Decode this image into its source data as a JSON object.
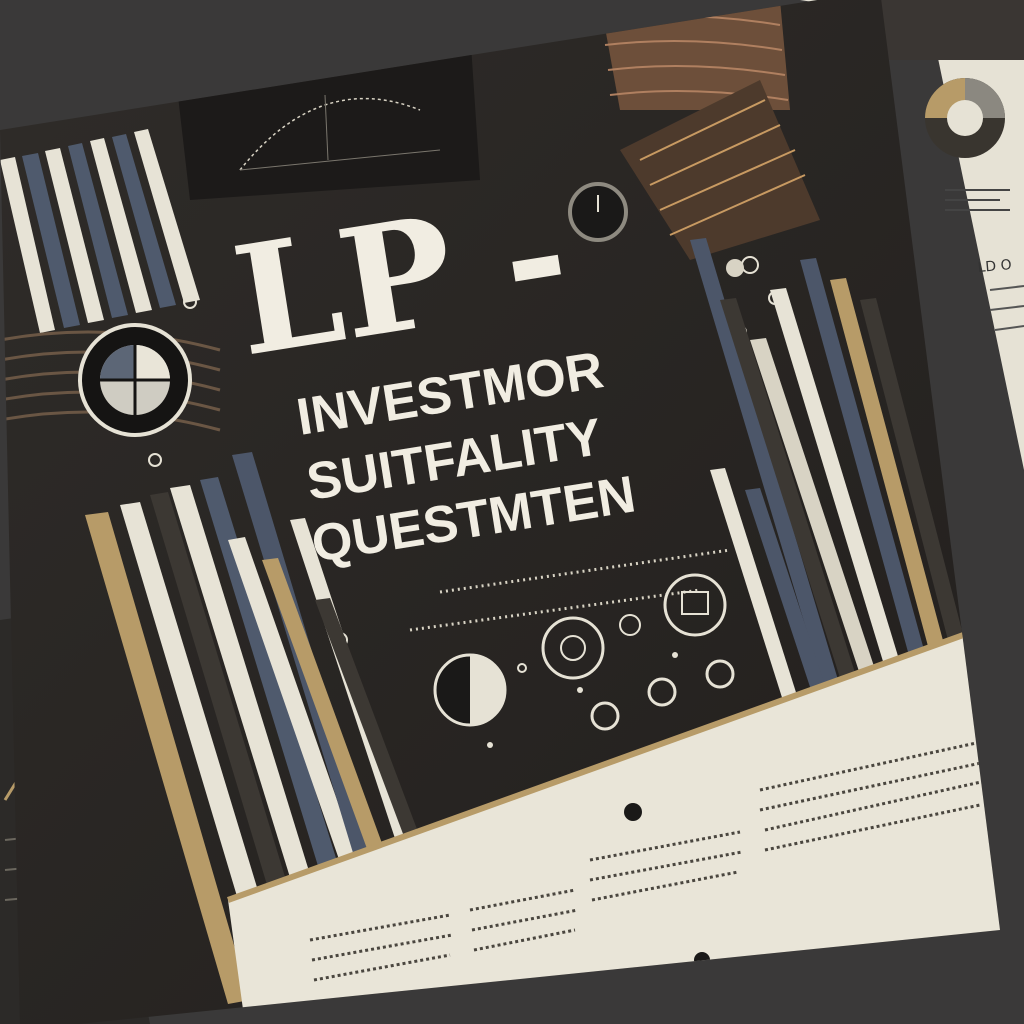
{
  "cover": {
    "title_line1": "LP -",
    "title_line2": "INVESTMOR",
    "title_line3": "SUITFALITY",
    "title_line4": "QUESTMTEN"
  },
  "side_doc": {
    "heading_fragment": "LD O"
  },
  "colors": {
    "background": "#3a3939",
    "cover": "#2b2826",
    "cream": "#e9e5d8",
    "gold": "#b79b68",
    "slate": "#4c5669",
    "text_light": "#f1ede2"
  },
  "icons": [
    "pie-chart-icon",
    "gauge-icon",
    "donut-chart-icon",
    "line-chart-icon",
    "ring-icon"
  ]
}
